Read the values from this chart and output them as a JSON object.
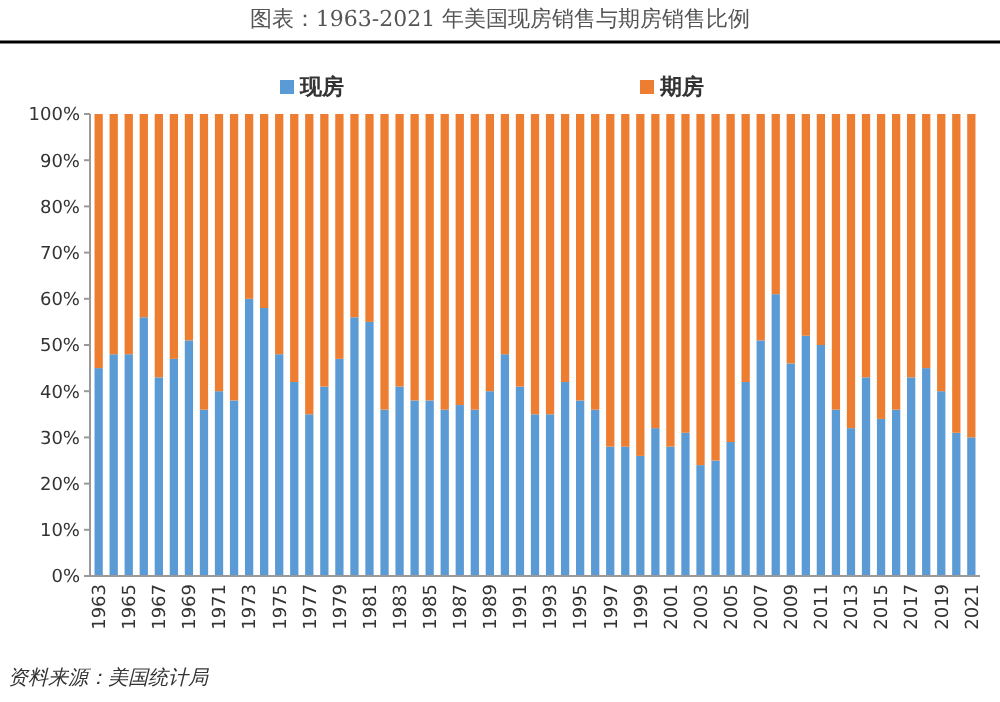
{
  "chart_data": {
    "type": "bar",
    "title": "图表：1963-2021 年美国现房销售与期房销售比例",
    "stacked": true,
    "categories": [
      "1963",
      null,
      "1965",
      null,
      "1967",
      null,
      "1969",
      null,
      "1971",
      null,
      "1973",
      null,
      "1975",
      null,
      "1977",
      null,
      "1979",
      null,
      "1981",
      null,
      "1983",
      null,
      "1985",
      null,
      "1987",
      null,
      "1989",
      null,
      "1991",
      null,
      "1993",
      null,
      "1995",
      null,
      "1997",
      null,
      "1999",
      null,
      "2001",
      null,
      "2003",
      null,
      "2005",
      null,
      "2007",
      null,
      "2009",
      null,
      "2011",
      null,
      "2013",
      null,
      "2015",
      null,
      "2017",
      null,
      "2019",
      null,
      "2021"
    ],
    "series": [
      {
        "name": "现房",
        "color": "#5b9bd5",
        "values": [
          45,
          48,
          48,
          56,
          43,
          47,
          51,
          36,
          40,
          38,
          60,
          58,
          48,
          42,
          35,
          41,
          47,
          56,
          55,
          36,
          41,
          38,
          38,
          36,
          37,
          36,
          40,
          48,
          41,
          35,
          35,
          42,
          38,
          36,
          28,
          28,
          26,
          32,
          28,
          31,
          24,
          25,
          29,
          42,
          51,
          61,
          46,
          52,
          50,
          36,
          32,
          43,
          34,
          36,
          43,
          45,
          40,
          31,
          30
        ]
      },
      {
        "name": "期房",
        "color": "#ed7d31",
        "values": [
          55,
          52,
          52,
          44,
          57,
          53,
          49,
          64,
          60,
          62,
          40,
          42,
          52,
          58,
          65,
          59,
          53,
          44,
          45,
          64,
          59,
          62,
          62,
          64,
          63,
          64,
          60,
          52,
          59,
          65,
          65,
          58,
          62,
          64,
          72,
          72,
          74,
          68,
          72,
          69,
          76,
          75,
          71,
          58,
          49,
          39,
          54,
          48,
          50,
          64,
          68,
          57,
          66,
          64,
          57,
          55,
          60,
          69,
          70
        ]
      }
    ],
    "ylim": [
      0,
      100
    ],
    "yticks": [
      {
        "value": 0,
        "label": "0%"
      },
      {
        "value": 10,
        "label": "10%"
      },
      {
        "value": 20,
        "label": "20%"
      },
      {
        "value": 30,
        "label": "30%"
      },
      {
        "value": 40,
        "label": "40%"
      },
      {
        "value": 50,
        "label": "50%"
      },
      {
        "value": 60,
        "label": "60%"
      },
      {
        "value": 70,
        "label": "70%"
      },
      {
        "value": 80,
        "label": "80%"
      },
      {
        "value": 90,
        "label": "90%"
      },
      {
        "value": 100,
        "label": "100%"
      }
    ],
    "legend": "top",
    "annotations": [
      "资料来源：美国统计局"
    ]
  }
}
